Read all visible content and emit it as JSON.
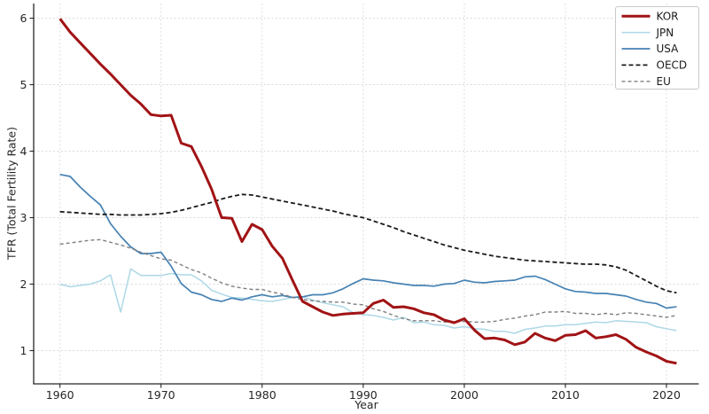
{
  "chart_data": {
    "type": "line",
    "title": "",
    "xlabel": "Year",
    "ylabel": "TFR (Total Fertility Rate)",
    "xlim": [
      1957.4,
      2023.2
    ],
    "ylim": [
      0.5,
      6.22
    ],
    "xticks": [
      1960,
      1970,
      1980,
      1990,
      2000,
      2010,
      2020
    ],
    "yticks": [
      1,
      2,
      3,
      4,
      5,
      6
    ],
    "grid": true,
    "grid_color": "#d9d9d9",
    "spine_color": "#262626",
    "legend_position": "top-right",
    "x": [
      1960,
      1961,
      1962,
      1963,
      1964,
      1965,
      1966,
      1967,
      1968,
      1969,
      1970,
      1971,
      1972,
      1973,
      1974,
      1975,
      1976,
      1977,
      1978,
      1979,
      1980,
      1981,
      1982,
      1983,
      1984,
      1985,
      1986,
      1987,
      1988,
      1989,
      1990,
      1991,
      1992,
      1993,
      1994,
      1995,
      1996,
      1997,
      1998,
      1999,
      2000,
      2001,
      2002,
      2003,
      2004,
      2005,
      2006,
      2007,
      2008,
      2009,
      2010,
      2011,
      2012,
      2013,
      2014,
      2015,
      2016,
      2017,
      2018,
      2019,
      2020,
      2021
    ],
    "series": [
      {
        "name": "KOR",
        "color": "#a11315",
        "width": 3,
        "dash": null,
        "values": [
          5.99,
          5.79,
          5.63,
          5.47,
          5.31,
          5.16,
          5.0,
          4.84,
          4.71,
          4.55,
          4.53,
          4.54,
          4.12,
          4.07,
          3.77,
          3.43,
          3.0,
          2.99,
          2.64,
          2.9,
          2.82,
          2.57,
          2.39,
          2.06,
          1.74,
          1.66,
          1.58,
          1.53,
          1.55,
          1.56,
          1.57,
          1.71,
          1.76,
          1.65,
          1.66,
          1.63,
          1.57,
          1.54,
          1.46,
          1.42,
          1.48,
          1.31,
          1.18,
          1.19,
          1.16,
          1.09,
          1.13,
          1.26,
          1.19,
          1.15,
          1.23,
          1.24,
          1.3,
          1.19,
          1.21,
          1.24,
          1.17,
          1.05,
          0.98,
          0.92,
          0.84,
          0.81
        ]
      },
      {
        "name": "JPN",
        "color": "#add8e6",
        "width": 1.5,
        "dash": null,
        "values": [
          2.0,
          1.96,
          1.98,
          2.0,
          2.05,
          2.14,
          1.58,
          2.23,
          2.13,
          2.13,
          2.13,
          2.16,
          2.14,
          2.14,
          2.05,
          1.91,
          1.85,
          1.8,
          1.79,
          1.77,
          1.75,
          1.74,
          1.77,
          1.8,
          1.81,
          1.76,
          1.72,
          1.69,
          1.66,
          1.57,
          1.54,
          1.53,
          1.5,
          1.46,
          1.5,
          1.42,
          1.43,
          1.39,
          1.38,
          1.34,
          1.36,
          1.33,
          1.32,
          1.29,
          1.29,
          1.26,
          1.32,
          1.34,
          1.37,
          1.37,
          1.39,
          1.39,
          1.41,
          1.43,
          1.42,
          1.45,
          1.44,
          1.43,
          1.42,
          1.36,
          1.33,
          1.3
        ]
      },
      {
        "name": "USA",
        "color": "#4682b4",
        "width": 1.7,
        "dash": null,
        "values": [
          3.65,
          3.62,
          3.46,
          3.32,
          3.19,
          2.91,
          2.72,
          2.56,
          2.46,
          2.46,
          2.48,
          2.27,
          2.01,
          1.88,
          1.84,
          1.77,
          1.74,
          1.79,
          1.76,
          1.81,
          1.84,
          1.81,
          1.83,
          1.8,
          1.81,
          1.84,
          1.84,
          1.87,
          1.93,
          2.01,
          2.08,
          2.06,
          2.05,
          2.02,
          2.0,
          1.98,
          1.98,
          1.97,
          2.0,
          2.01,
          2.06,
          2.03,
          2.02,
          2.04,
          2.05,
          2.06,
          2.11,
          2.12,
          2.07,
          2.0,
          1.93,
          1.89,
          1.88,
          1.86,
          1.86,
          1.84,
          1.82,
          1.77,
          1.73,
          1.71,
          1.64,
          1.66
        ]
      },
      {
        "name": "OECD",
        "color": "#1a1a1a",
        "width": 1.8,
        "dash": "5,3",
        "values": [
          3.09,
          3.08,
          3.07,
          3.06,
          3.05,
          3.05,
          3.04,
          3.04,
          3.04,
          3.05,
          3.06,
          3.08,
          3.11,
          3.15,
          3.19,
          3.23,
          3.28,
          3.32,
          3.35,
          3.34,
          3.31,
          3.28,
          3.25,
          3.22,
          3.19,
          3.16,
          3.13,
          3.1,
          3.06,
          3.03,
          3.0,
          2.95,
          2.9,
          2.85,
          2.79,
          2.74,
          2.69,
          2.64,
          2.59,
          2.55,
          2.51,
          2.48,
          2.45,
          2.42,
          2.4,
          2.38,
          2.36,
          2.35,
          2.34,
          2.33,
          2.32,
          2.31,
          2.3,
          2.3,
          2.29,
          2.26,
          2.21,
          2.13,
          2.05,
          1.97,
          1.9,
          1.87
        ]
      },
      {
        "name": "EU",
        "color": "#7f7f7f",
        "width": 1.4,
        "dash": "4,3",
        "values": [
          2.6,
          2.62,
          2.64,
          2.66,
          2.67,
          2.63,
          2.59,
          2.54,
          2.48,
          2.43,
          2.38,
          2.36,
          2.29,
          2.22,
          2.17,
          2.09,
          2.02,
          1.97,
          1.94,
          1.92,
          1.92,
          1.88,
          1.85,
          1.8,
          1.77,
          1.75,
          1.74,
          1.73,
          1.73,
          1.7,
          1.69,
          1.63,
          1.59,
          1.53,
          1.48,
          1.45,
          1.45,
          1.45,
          1.43,
          1.43,
          1.44,
          1.43,
          1.43,
          1.44,
          1.47,
          1.49,
          1.52,
          1.54,
          1.58,
          1.58,
          1.59,
          1.56,
          1.56,
          1.54,
          1.56,
          1.54,
          1.57,
          1.56,
          1.54,
          1.52,
          1.5,
          1.53
        ]
      }
    ]
  }
}
